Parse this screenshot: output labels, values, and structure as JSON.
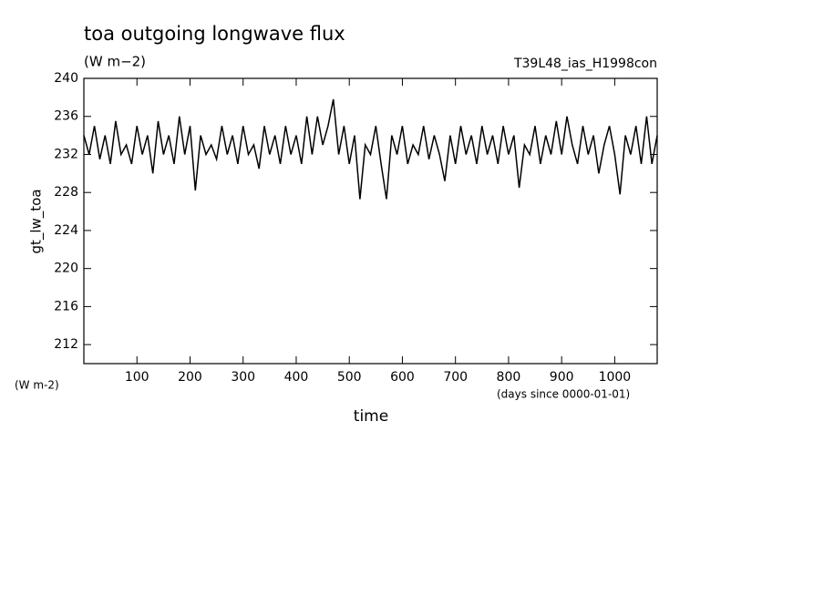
{
  "chart_data": {
    "type": "line",
    "title": "toa outgoing longwave flux",
    "subtitle": "(W m−2)",
    "annotation": "T39L48_ias_H1998con",
    "ylabel": "gt_lw_toa",
    "yunits": "(W m-2)",
    "xunits": "(days since 0000-01-01)",
    "xlabel": "time",
    "xlim": [
      0,
      1080
    ],
    "ylim": [
      210,
      240
    ],
    "xticks": [
      100,
      200,
      300,
      400,
      500,
      600,
      700,
      800,
      900,
      1000
    ],
    "yticks": [
      212,
      216,
      220,
      224,
      228,
      232,
      236,
      240
    ],
    "x": [
      0,
      10,
      20,
      30,
      40,
      50,
      60,
      70,
      80,
      90,
      100,
      110,
      120,
      130,
      140,
      150,
      160,
      170,
      180,
      190,
      200,
      210,
      220,
      230,
      240,
      250,
      260,
      270,
      280,
      290,
      300,
      310,
      320,
      330,
      340,
      350,
      360,
      370,
      380,
      390,
      400,
      410,
      420,
      430,
      440,
      450,
      460,
      470,
      480,
      490,
      500,
      510,
      520,
      530,
      540,
      550,
      560,
      570,
      580,
      590,
      600,
      610,
      620,
      630,
      640,
      650,
      660,
      670,
      680,
      690,
      700,
      710,
      720,
      730,
      740,
      750,
      760,
      770,
      780,
      790,
      800,
      810,
      820,
      830,
      840,
      850,
      860,
      870,
      880,
      890,
      900,
      910,
      920,
      930,
      940,
      950,
      960,
      970,
      980,
      990,
      1000,
      1010,
      1020,
      1030,
      1040,
      1050,
      1060,
      1070,
      1080
    ],
    "series": [
      {
        "name": "gt_lw_toa",
        "color": "#000000",
        "values": [
          234,
          232,
          235,
          231.5,
          234,
          231,
          235.5,
          232,
          233,
          231,
          235,
          232,
          234,
          230,
          235.5,
          232,
          234,
          231,
          236,
          232,
          235,
          228.2,
          234,
          232,
          233,
          231.5,
          235,
          232,
          234,
          231,
          235,
          232,
          233,
          230.5,
          235,
          232,
          234,
          231,
          235,
          232,
          234,
          231,
          236,
          232,
          236,
          233,
          235,
          237.8,
          232,
          235,
          231,
          234,
          227.3,
          233,
          232,
          235,
          231,
          227.3,
          234,
          232,
          235,
          231,
          233,
          232,
          235,
          231.5,
          234,
          232,
          229.2,
          234,
          231,
          235,
          232,
          234,
          231,
          235,
          232,
          234,
          231,
          235,
          232,
          234,
          228.5,
          233,
          232,
          235,
          231,
          234,
          232,
          235.5,
          232,
          236,
          233,
          231,
          235,
          232,
          234,
          230,
          233,
          235,
          232,
          227.8,
          234,
          232,
          235,
          231,
          236,
          231,
          234
        ]
      }
    ]
  }
}
